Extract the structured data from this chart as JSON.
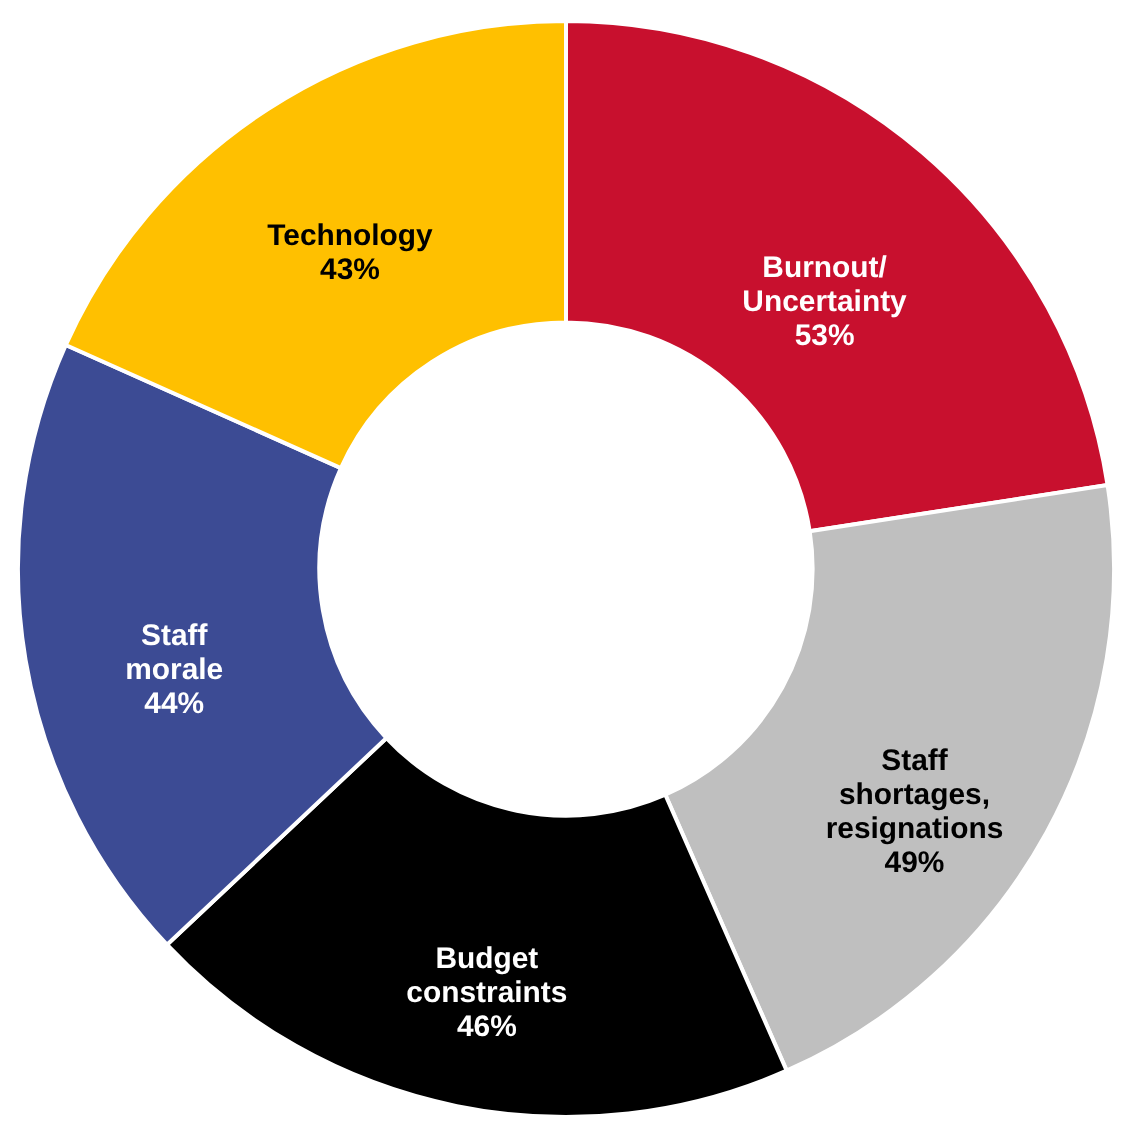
{
  "chart_data": {
    "type": "donut",
    "categories": [
      "Burnout/ Uncertainty",
      "Staff shortages, resignations",
      "Budget constraints",
      "Staff morale",
      "Technology"
    ],
    "values": [
      53,
      49,
      46,
      44,
      43
    ],
    "value_labels": [
      "53%",
      "49%",
      "46%",
      "44%",
      "43%"
    ],
    "colors": [
      "#c8102e",
      "#bfbfbf",
      "#000000",
      "#3c4b94",
      "#ffc000"
    ],
    "legend": false
  }
}
